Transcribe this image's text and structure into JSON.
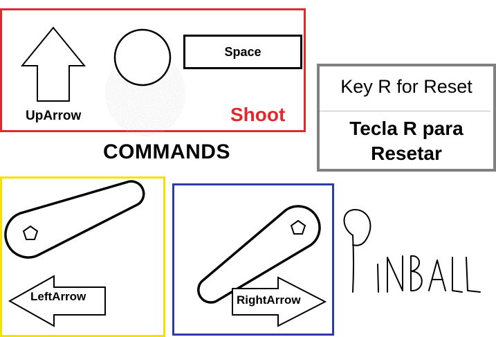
{
  "commands": {
    "title": "COMMANDS",
    "shoot": {
      "up_key_label": "UpArrow",
      "space_key_label": "Space",
      "action_label": "Shoot",
      "icons": [
        "up-arrow-icon",
        "ball-icon",
        "space-key-icon"
      ],
      "accent_color": "#e0282e"
    },
    "reset": {
      "english": "Key R for Reset",
      "portuguese_line1": "Tecla R para",
      "portuguese_line2": "Resetar",
      "border_color": "#808080"
    },
    "left_flipper": {
      "key_label": "LeftArrow",
      "icons": [
        "left-flipper-icon",
        "left-arrow-icon"
      ],
      "border_color": "#f4e100"
    },
    "right_flipper": {
      "key_label": "RightArrow",
      "icons": [
        "right-flipper-icon",
        "right-arrow-icon"
      ],
      "border_color": "#2e3aa8"
    }
  },
  "logo": {
    "text": "PINBALL",
    "style": "handwritten"
  }
}
